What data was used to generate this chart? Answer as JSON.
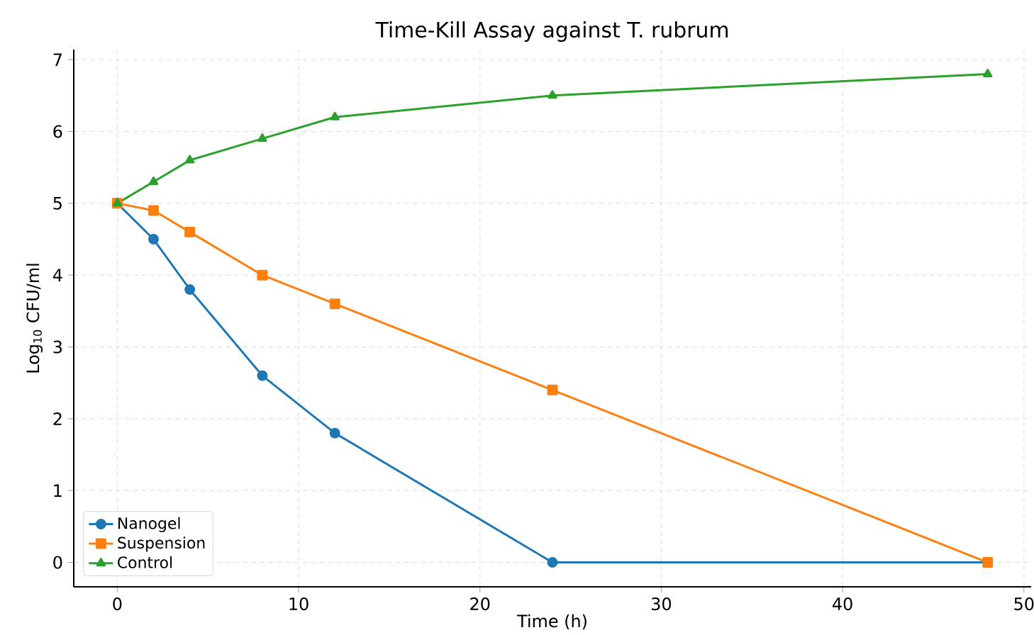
{
  "chart_data": {
    "type": "line",
    "title": "Time-Kill Assay against T. rubrum",
    "xlabel": "Time (h)",
    "ylabel": "Log$_{10}$ CFU/ml",
    "x": [
      0,
      2,
      4,
      8,
      12,
      24,
      48
    ],
    "series": [
      {
        "name": "Nanogel",
        "color": "#1f77b4",
        "marker": "circle",
        "values": [
          5,
          4.5,
          3.8,
          2.6,
          1.8,
          0,
          0
        ]
      },
      {
        "name": "Suspension",
        "color": "#ff7f0e",
        "marker": "square",
        "values": [
          5,
          4.9,
          4.6,
          4.0,
          3.6,
          2.4,
          0
        ]
      },
      {
        "name": "Control",
        "color": "#2ca02c",
        "marker": "triangle",
        "values": [
          5,
          5.3,
          5.6,
          5.9,
          6.2,
          6.5,
          6.8
        ]
      }
    ],
    "xlim": [
      -2.4,
      50.4
    ],
    "ylim": [
      -0.34,
      7.14
    ],
    "xticks": [
      0,
      10,
      20,
      30,
      40,
      50
    ],
    "yticks": [
      0,
      1,
      2,
      3,
      4,
      5,
      6,
      7
    ],
    "grid": true,
    "legend": "bottom left",
    "line_style": "solid"
  }
}
